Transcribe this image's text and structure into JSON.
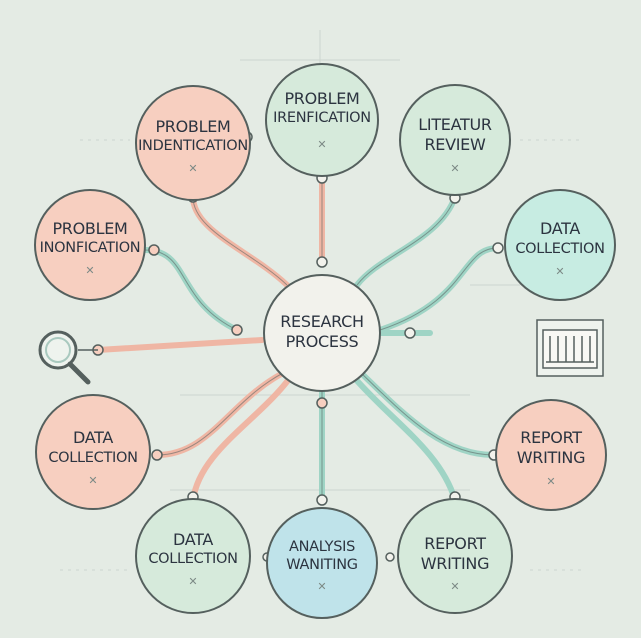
{
  "colors": {
    "background": "#e4ebe4",
    "peach": "#f7cfc0",
    "mint": "#d6eadb",
    "aqua": "#c7ece2",
    "blue": "#bfe3ea",
    "center": "#f2f2ec",
    "stroke": "#55605e",
    "connector_peach": "#efb6a4",
    "connector_mint": "#9fd4c5"
  },
  "center": {
    "line1": "RESEARCH",
    "line2": "PROCESS"
  },
  "nodes": [
    {
      "id": "problem-identification-top-left",
      "line1": "PROBLEM",
      "line2": "INDENTICATION",
      "glyph": "✕",
      "fill": "peach"
    },
    {
      "id": "problem-identification-top",
      "line1": "PROBLEM",
      "line2": "IRENFICATION",
      "glyph": "✕",
      "fill": "mint"
    },
    {
      "id": "literature-review",
      "line1": "LITEATUR",
      "line2": "REVIEW",
      "glyph": "✕",
      "fill": "mint"
    },
    {
      "id": "problem-identification-left",
      "line1": "PROBLEM",
      "line2": "INONFICATION",
      "glyph": "✕",
      "fill": "peach"
    },
    {
      "id": "data-collection-right",
      "line1": "DATA",
      "line2": "COLLECTION",
      "glyph": "✕",
      "fill": "aqua"
    },
    {
      "id": "data-collection-left",
      "line1": "DATA",
      "line2": "COLLECTION",
      "glyph": "✕",
      "fill": "peach"
    },
    {
      "id": "report-writing-right",
      "line1": "REPORT",
      "line2": "WRITING",
      "glyph": "✕",
      "fill": "peach"
    },
    {
      "id": "data-collection-bottom",
      "line1": "DATA",
      "line2": "COLLECTION",
      "glyph": "✕",
      "fill": "mint"
    },
    {
      "id": "analysis-writing",
      "line1": "ANALYSIS",
      "line2": "WANITING",
      "glyph": "✕",
      "fill": "blue"
    },
    {
      "id": "report-writing-bottom",
      "line1": "REPORT",
      "line2": "WRITING",
      "glyph": "✕",
      "fill": "mint"
    }
  ],
  "icons": [
    "magnifier-icon",
    "chart-board-icon"
  ]
}
